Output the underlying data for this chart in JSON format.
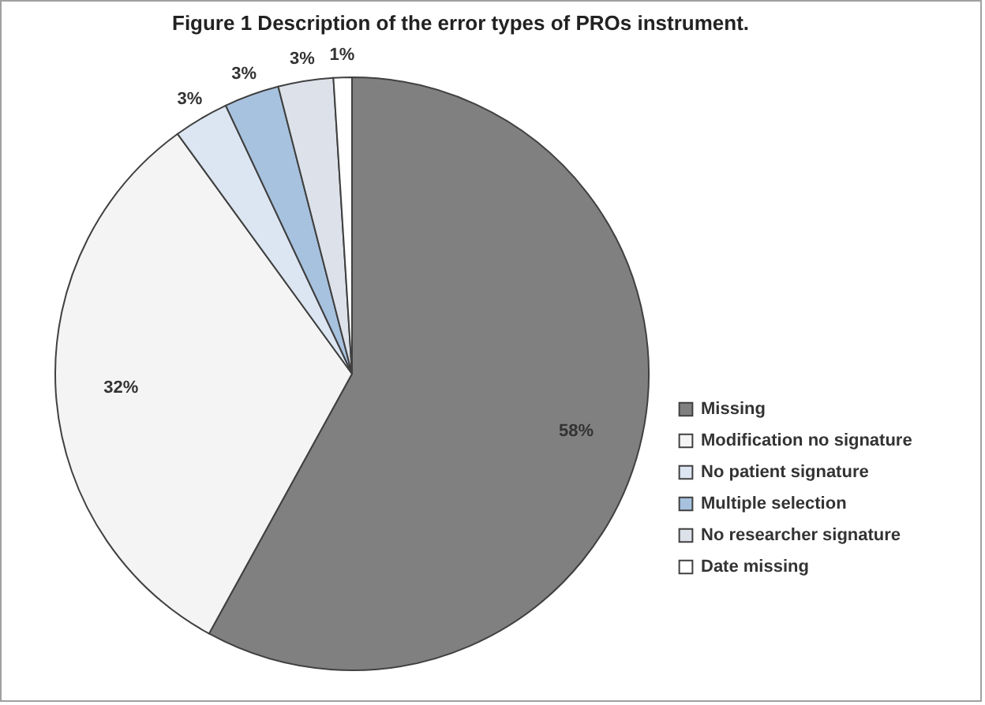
{
  "chart_data": {
    "type": "pie",
    "title": "Figure 1 Description of the error types of PROs instrument.",
    "categories": [
      "Missing",
      "Modification no signature",
      "No patient signature",
      "Multiple selection",
      "No researcher signature",
      "Date missing"
    ],
    "values": [
      58,
      32,
      3,
      3,
      3,
      1
    ],
    "value_labels": [
      "58%",
      "32%",
      "3%",
      "3%",
      "3%",
      "1%"
    ],
    "colors": [
      "#808080",
      "#f4f4f4",
      "#dce6f2",
      "#a7c2df",
      "#dde2ea",
      "#ffffff"
    ],
    "legend": "right"
  }
}
